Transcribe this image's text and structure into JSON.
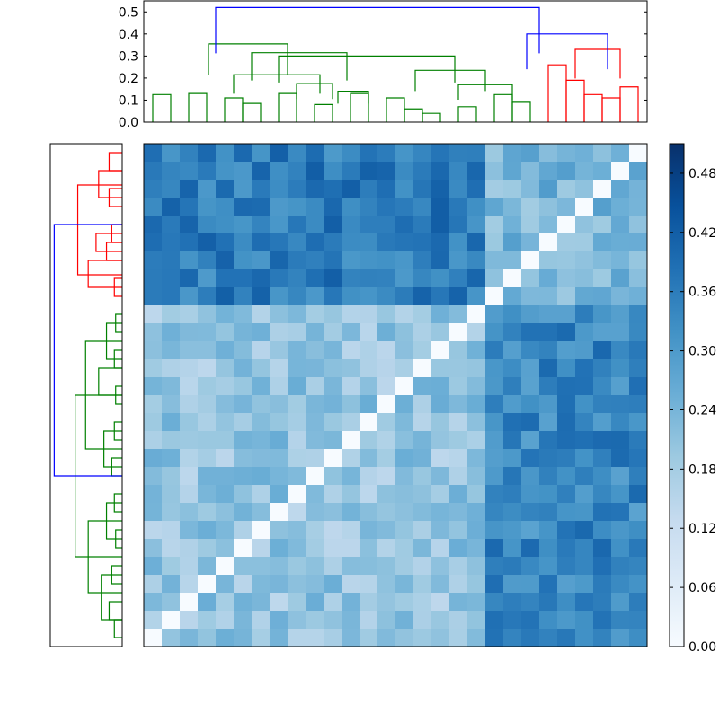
{
  "chart_data": [
    {
      "type": "dendrogram",
      "orientation": "top",
      "yticks": [
        "0.0",
        "0.1",
        "0.2",
        "0.3",
        "0.4",
        "0.5"
      ],
      "ylim": [
        0,
        0.55
      ],
      "colors": {
        "high": "#0000ff",
        "cluster_a": "#008000",
        "cluster_b": "#ff0000"
      },
      "leaves": 28,
      "links": [
        {
          "l1": 1,
          "l2": 2,
          "h": 0.125,
          "c": "g"
        },
        {
          "l1": 3,
          "l2": 4,
          "h": 0.13,
          "c": "g"
        },
        {
          "l1": 5,
          "l2": 6,
          "h": 0.11,
          "c": "g"
        },
        {
          "l1": 6,
          "l2": 7,
          "h": 0.085,
          "c": "g"
        },
        {
          "l1": 8,
          "l2": 9,
          "h": 0.13,
          "c": "g"
        },
        {
          "l1": 10,
          "l2": 11,
          "h": 0.08,
          "c": "g"
        },
        {
          "l1": 12,
          "l2": 13,
          "h": 0.13,
          "c": "g"
        },
        {
          "l1": 14,
          "l2": 15,
          "h": 0.11,
          "c": "g"
        },
        {
          "l1": 15,
          "l2": 16,
          "h": 0.06,
          "c": "g"
        },
        {
          "l1": 16,
          "l2": 17,
          "h": 0.04,
          "c": "g"
        },
        {
          "l1": 18,
          "l2": 19,
          "h": 0.07,
          "c": "g"
        },
        {
          "l1": 20,
          "l2": 21,
          "h": 0.125,
          "c": "g"
        },
        {
          "l1": 21,
          "l2": 22,
          "h": 0.09,
          "c": "g"
        },
        {
          "l1": 23,
          "l2": 24,
          "h": 0.26,
          "c": "r"
        },
        {
          "l1": 24,
          "l2": 25,
          "h": 0.19,
          "c": "r"
        },
        {
          "l1": 25,
          "l2": 26,
          "h": 0.125,
          "c": "r"
        },
        {
          "l1": 26,
          "l2": 27,
          "h": 0.11,
          "c": "r"
        },
        {
          "l1": 27,
          "l2": 28,
          "h": 0.16,
          "c": "r"
        }
      ],
      "upper_links": [
        {
          "x1": 4.1,
          "x2": 8.5,
          "h": 0.355,
          "c": "g"
        },
        {
          "x1": 6.5,
          "x2": 11.8,
          "h": 0.315,
          "c": "g"
        },
        {
          "x1": 8.0,
          "x2": 17.8,
          "h": 0.3,
          "c": "g"
        },
        {
          "x1": 5.5,
          "x2": 10.3,
          "h": 0.215,
          "c": "g"
        },
        {
          "x1": 9.0,
          "x2": 11.0,
          "h": 0.175,
          "c": "g"
        },
        {
          "x1": 11.3,
          "x2": 13.0,
          "h": 0.14,
          "c": "g"
        },
        {
          "x1": 15.6,
          "x2": 19.5,
          "h": 0.235,
          "c": "g"
        },
        {
          "x1": 18.0,
          "x2": 21.0,
          "h": 0.17,
          "c": "g"
        },
        {
          "x1": 24.5,
          "x2": 27.0,
          "h": 0.33,
          "c": "r"
        },
        {
          "x1": 21.8,
          "x2": 26.3,
          "h": 0.4,
          "c": "b"
        },
        {
          "x1": 4.5,
          "x2": 22.5,
          "h": 0.52,
          "c": "b"
        }
      ]
    },
    {
      "type": "dendrogram",
      "orientation": "left",
      "leaves": 28,
      "colors": {
        "high": "#0000ff",
        "cluster_a": "#008000",
        "cluster_b": "#ff0000"
      }
    },
    {
      "type": "heatmap",
      "rows": 28,
      "cols": 28,
      "colormap": "Blues",
      "vmin": 0.0,
      "vmax": 0.51,
      "colorbar_ticks": [
        "0.00",
        "0.06",
        "0.12",
        "0.18",
        "0.24",
        "0.30",
        "0.36",
        "0.42",
        "0.48"
      ],
      "colorbar_values": [
        0.0,
        0.06,
        0.12,
        0.18,
        0.24,
        0.3,
        0.36,
        0.42,
        0.48
      ],
      "blocks": {
        "top_rows": 9,
        "block_sizes_from_top": [
          9,
          19
        ],
        "top_block_col_split": 19,
        "values": {
          "top_left": 0.36,
          "top_right": 0.24,
          "bottom_left": 0.2,
          "bottom_right": 0.34
        }
      }
    }
  ]
}
